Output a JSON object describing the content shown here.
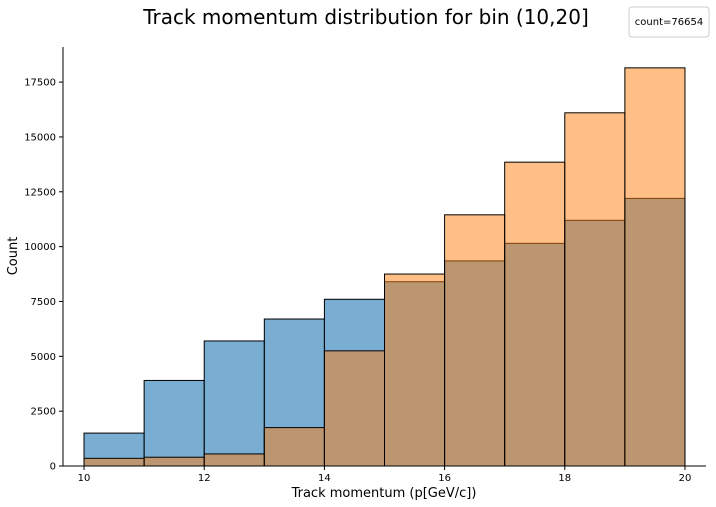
{
  "chart_data": {
    "type": "bar",
    "title": "Track momentum distribution for bin (10,20]",
    "xlabel": "Track momentum (p[GeV/c])",
    "ylabel": "Count",
    "xlim": [
      9.65,
      20.35
    ],
    "ylim": [
      0,
      19100
    ],
    "x_ticks": [
      10,
      12,
      14,
      16,
      18,
      20
    ],
    "y_ticks": [
      0,
      2500,
      5000,
      7500,
      10000,
      12500,
      15000,
      17500
    ],
    "bin_edges": [
      10,
      11,
      12,
      13,
      14,
      15,
      16,
      17,
      18,
      19,
      20
    ],
    "series": [
      {
        "values": [
          1500,
          3900,
          5700,
          6700,
          7600,
          8400,
          9350,
          10150,
          11200,
          12200
        ],
        "color": "#1f77b4",
        "alpha": 0.6
      },
      {
        "values": [
          350,
          400,
          550,
          1750,
          5250,
          8750,
          11450,
          13850,
          16100,
          18150
        ],
        "color": "#ff7f0e",
        "alpha": 0.5
      }
    ],
    "legend": {
      "text": "count=76654",
      "placement": "top-right"
    },
    "grid": false
  }
}
